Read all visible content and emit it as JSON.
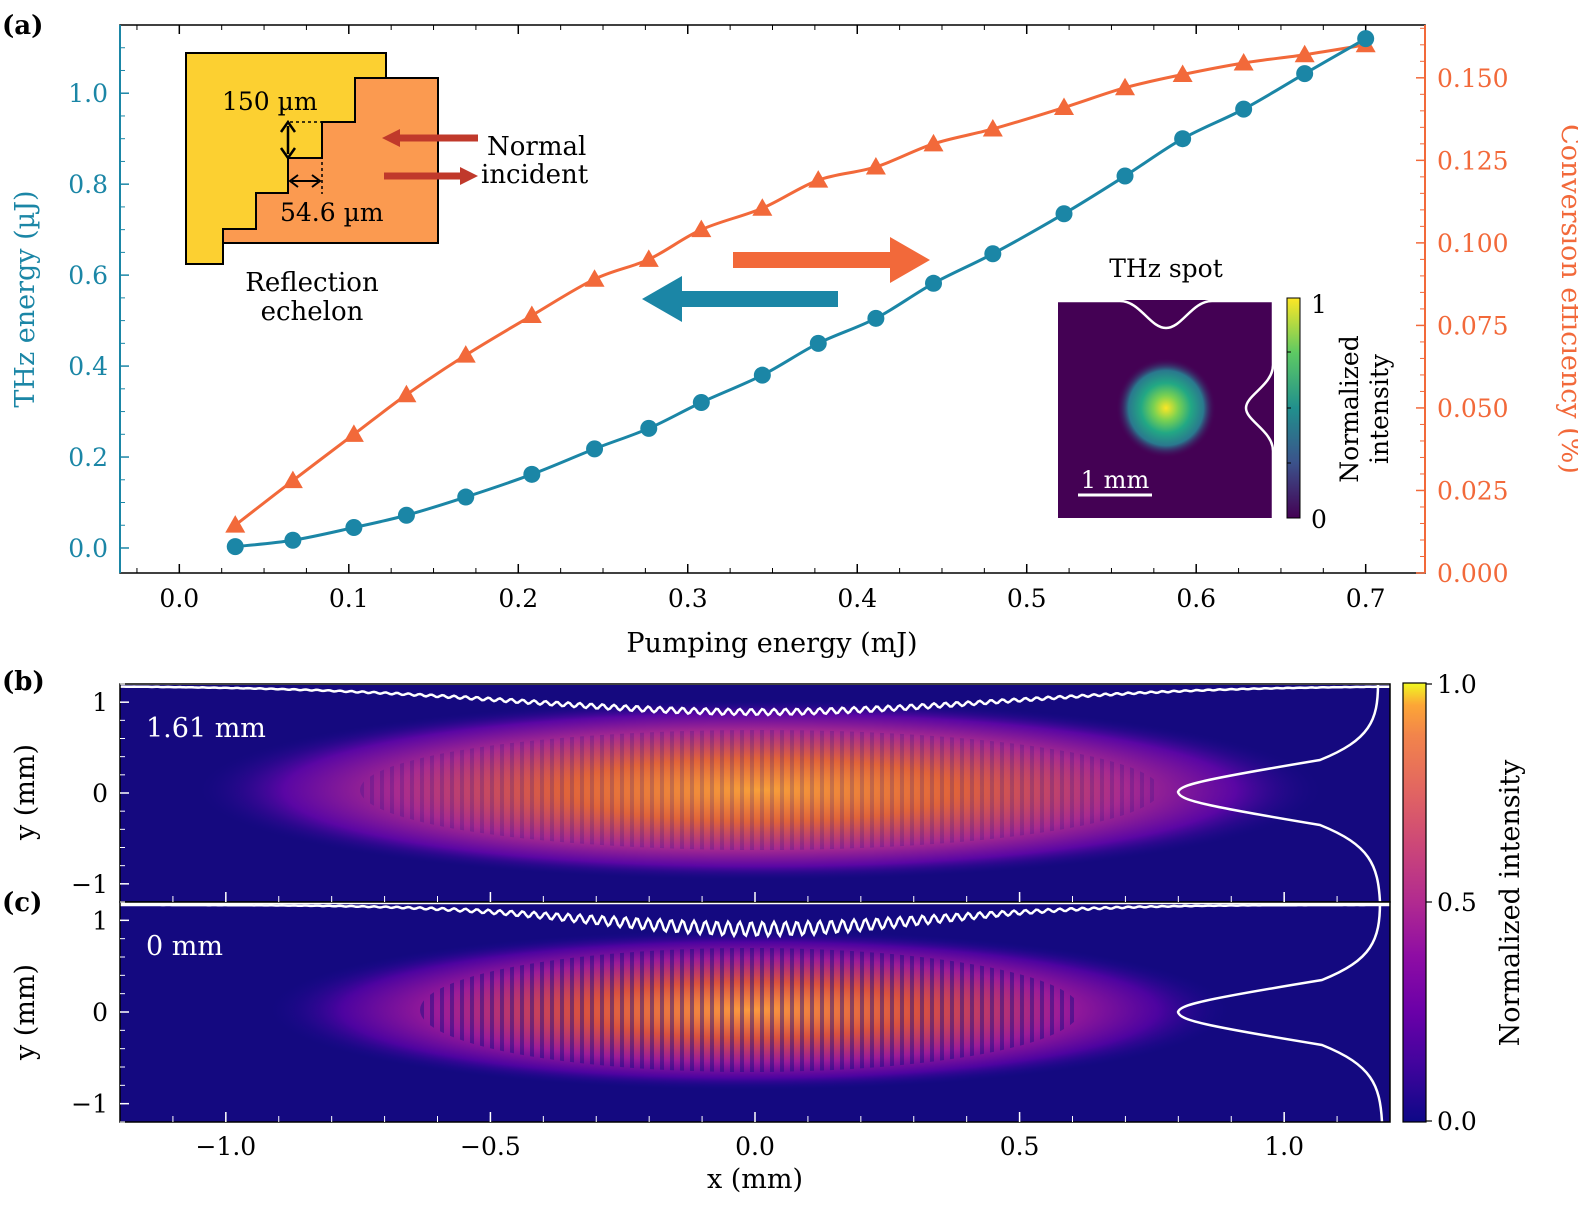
{
  "colors": {
    "thz": "#1b86a6",
    "eff": "#f2693a",
    "echelon_left": "#fcd031",
    "echelon_right": "#fb9a50",
    "echelon_arrow": "#c0392b",
    "big_arrow_eff": "#f2693a",
    "big_arrow_thz": "#1b86a6"
  },
  "panel_labels": {
    "a": "(a)",
    "b": "(b)",
    "c": "(c)"
  },
  "chart_data": [
    {
      "type": "line",
      "panel": "(a)",
      "xlabel": "Pumping energy (mJ)",
      "ylabel": "THz energy (µJ)",
      "y2label": "Conversion efficiency (%)",
      "xlim": [
        -0.035,
        0.735
      ],
      "ylim": [
        -0.055,
        1.15
      ],
      "y2lim": [
        0.0,
        0.166
      ],
      "xticks": [
        "0.0",
        "0.1",
        "0.2",
        "0.3",
        "0.4",
        "0.5",
        "0.6",
        "0.7"
      ],
      "yticks": [
        "0.0",
        "0.2",
        "0.4",
        "0.6",
        "0.8",
        "1.0"
      ],
      "y2ticks": [
        "0.000",
        "0.025",
        "0.050",
        "0.075",
        "0.100",
        "0.125",
        "0.150"
      ],
      "series": [
        {
          "name": "THz energy",
          "axis": "left",
          "marker": "circle",
          "x": [
            0.033,
            0.067,
            0.103,
            0.134,
            0.169,
            0.208,
            0.245,
            0.277,
            0.308,
            0.344,
            0.377,
            0.411,
            0.445,
            0.48,
            0.522,
            0.558,
            0.592,
            0.628,
            0.664,
            0.7
          ],
          "y": [
            0.003,
            0.017,
            0.045,
            0.072,
            0.112,
            0.162,
            0.218,
            0.263,
            0.32,
            0.38,
            0.45,
            0.505,
            0.582,
            0.647,
            0.735,
            0.818,
            0.9,
            0.965,
            1.043,
            1.12
          ]
        },
        {
          "name": "Conversion efficiency",
          "axis": "right",
          "marker": "triangle",
          "x": [
            0.033,
            0.067,
            0.103,
            0.134,
            0.169,
            0.208,
            0.245,
            0.277,
            0.308,
            0.344,
            0.377,
            0.411,
            0.445,
            0.48,
            0.522,
            0.558,
            0.592,
            0.628,
            0.664,
            0.7
          ],
          "y": [
            0.0145,
            0.028,
            0.042,
            0.054,
            0.066,
            0.078,
            0.089,
            0.095,
            0.104,
            0.1105,
            0.119,
            0.123,
            0.13,
            0.1345,
            0.141,
            0.147,
            0.151,
            0.1545,
            0.157,
            0.16
          ]
        }
      ],
      "annotations": {
        "echelon_step": "150 µm",
        "echelon_width": "54.6 µm",
        "normal": "Normal",
        "incident": "incident",
        "echelon_caption_1": "Reflection",
        "echelon_caption_2": "echelon",
        "spot_title": "THz spot",
        "spot_scalebar": "1 mm",
        "spot_cbar_label_1": "Normalized",
        "spot_cbar_label_2": "intensity",
        "spot_cbar_max": "1",
        "spot_cbar_min": "0"
      }
    },
    {
      "type": "heatmap",
      "panel": "(b)",
      "annotation": "1.61 mm",
      "ylabel": "y (mm)",
      "xlim": [
        -1.2,
        1.2
      ],
      "ylim": [
        -1.2,
        1.2
      ],
      "yticks": [
        "1",
        "0",
        "−1"
      ]
    },
    {
      "type": "heatmap",
      "panel": "(c)",
      "annotation": "0 mm",
      "xlabel": "x (mm)",
      "ylabel": "y (mm)",
      "xlim": [
        -1.2,
        1.2
      ],
      "ylim": [
        -1.2,
        1.2
      ],
      "xticks": [
        "−1.0",
        "−0.5",
        "0.0",
        "0.5",
        "1.0"
      ],
      "yticks": [
        "1",
        "0",
        "−1"
      ],
      "colorbar": {
        "label": "Normalized intensity",
        "ticks": [
          "1.0",
          "0.5",
          "0.0"
        ]
      }
    }
  ]
}
